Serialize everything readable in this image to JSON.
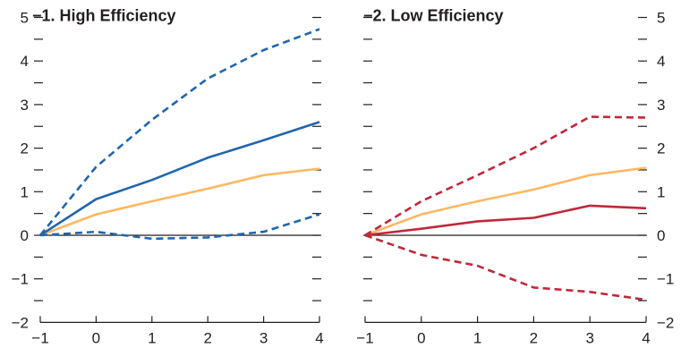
{
  "chart_data": [
    {
      "type": "line",
      "title": "−1. High Efficiency",
      "x": [
        -1,
        0,
        1,
        2,
        3,
        4
      ],
      "xlim": [
        -1,
        4
      ],
      "ylim": [
        -2,
        5
      ],
      "xticks": [
        -1,
        0,
        1,
        2,
        3,
        4
      ],
      "yticks": [
        -2,
        -1,
        0,
        1,
        2,
        3,
        4,
        5
      ],
      "ytick_side": "left",
      "grid": false,
      "zero_line": true,
      "series": [
        {
          "color": "#fdb863",
          "style": "solid",
          "values": [
            0,
            0.48,
            0.78,
            1.07,
            1.38,
            1.53
          ]
        },
        {
          "color": "#2166ac",
          "style": "solid",
          "values": [
            0,
            0.83,
            1.27,
            1.78,
            2.18,
            2.6
          ]
        },
        {
          "color": "#2166ac",
          "style": "dashed",
          "values": [
            0,
            1.57,
            2.65,
            3.6,
            4.25,
            4.73
          ]
        },
        {
          "color": "#2166ac",
          "style": "dashed",
          "values": [
            0,
            0.08,
            -0.08,
            -0.05,
            0.08,
            0.48
          ]
        }
      ]
    },
    {
      "type": "line",
      "title": "−2. Low Efficiency",
      "x": [
        -1,
        0,
        1,
        2,
        3,
        4
      ],
      "xlim": [
        -1,
        4
      ],
      "ylim": [
        -2,
        5
      ],
      "xticks": [
        -1,
        0,
        1,
        2,
        3,
        4
      ],
      "yticks": [
        -2,
        -1,
        0,
        1,
        2,
        3,
        4,
        5
      ],
      "ytick_side": "right",
      "grid": false,
      "zero_line": true,
      "series": [
        {
          "color": "#fdb863",
          "style": "solid",
          "values": [
            0,
            0.48,
            0.78,
            1.05,
            1.38,
            1.55
          ]
        },
        {
          "color": "#c0283b",
          "style": "solid",
          "values": [
            0,
            0.15,
            0.32,
            0.4,
            0.68,
            0.62
          ]
        },
        {
          "color": "#c0283b",
          "style": "dashed",
          "values": [
            0,
            0.78,
            1.38,
            2.0,
            2.72,
            2.7
          ]
        },
        {
          "color": "#c0283b",
          "style": "dashed",
          "values": [
            0,
            -0.45,
            -0.7,
            -1.2,
            -1.3,
            -1.48
          ]
        }
      ]
    }
  ]
}
